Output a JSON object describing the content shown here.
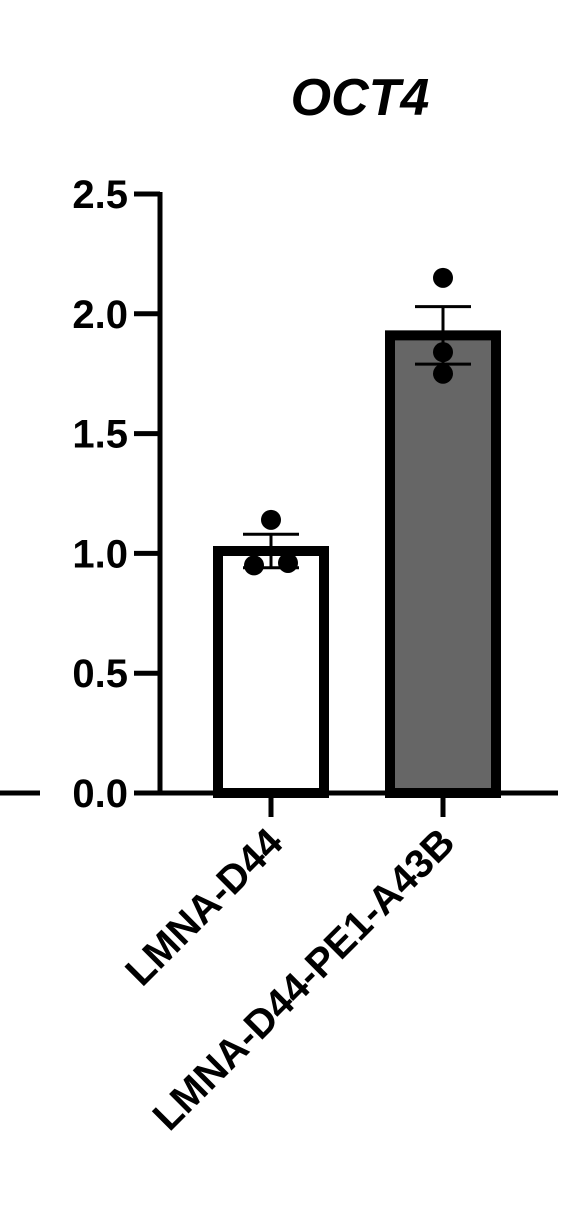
{
  "chart_data": {
    "type": "bar",
    "title": "OCT4",
    "xlabel": "",
    "ylabel": "",
    "ylim": [
      0,
      2.5
    ],
    "yticks": [
      0.0,
      0.5,
      1.0,
      1.5,
      2.0,
      2.5
    ],
    "ytick_labels": [
      "0.0",
      "0.5",
      "1.0",
      "1.5",
      "2.0",
      "2.5"
    ],
    "categories": [
      "LMNA-D44",
      "LMNA-D44-PE1-A43B"
    ],
    "values": [
      1.01,
      1.91
    ],
    "errors": [
      0.07,
      0.12
    ],
    "points": [
      [
        1.14,
        0.95,
        0.96
      ],
      [
        2.15,
        1.84,
        1.75
      ]
    ],
    "bar_colors": [
      "#ffffff",
      "#666666"
    ],
    "bar_edge_color": "#000000",
    "grid": false,
    "legend": "none"
  }
}
